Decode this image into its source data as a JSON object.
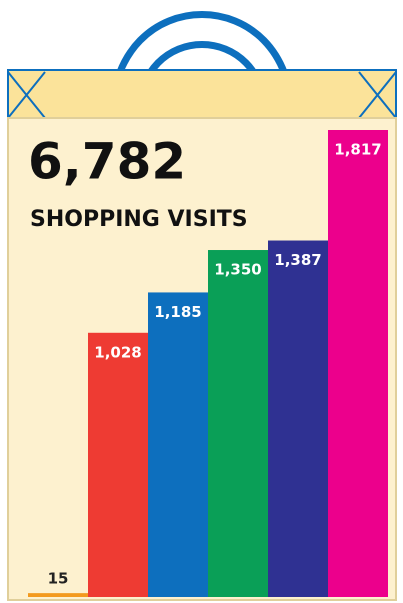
{
  "chart_data": {
    "type": "bar",
    "title": "6,782",
    "subtitle": "SHOPPING VISITS",
    "values": [
      15,
      1028,
      1185,
      1350,
      1387,
      1817
    ],
    "value_labels": [
      "15",
      "1,028",
      "1,185",
      "1,350",
      "1,387",
      "1,817"
    ],
    "colors": [
      "#f39a1e",
      "#ee3b33",
      "#0d6fbe",
      "#0a9f57",
      "#2f3192",
      "#ec008c"
    ]
  }
}
